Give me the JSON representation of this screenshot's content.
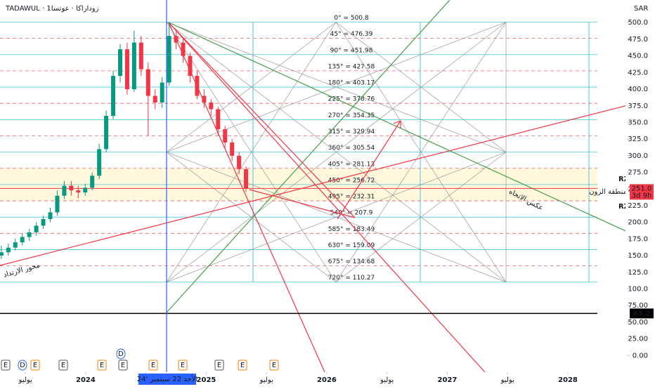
{
  "header": {
    "symbol": "TADAWUL · زوداراكا · عوتسا1",
    "currency": "SAR"
  },
  "chart_data": {
    "type": "candlestick",
    "x": [
      2023.3,
      2023.358,
      2023.416,
      2023.474,
      2023.532,
      2023.59,
      2023.648,
      2023.706,
      2023.764,
      2023.822,
      2023.88,
      2023.938,
      2023.996,
      2024.054,
      2024.112,
      2024.17,
      2024.228,
      2024.286,
      2024.344,
      2024.402,
      2024.46,
      2024.518,
      2024.576,
      2024.634,
      2024.692,
      2024.75,
      2024.808,
      2024.866,
      2024.924,
      2024.982,
      2025.04,
      2025.098,
      2025.156,
      2025.214,
      2025.272,
      2025.33
    ],
    "open": [
      150,
      155,
      162,
      170,
      178,
      185,
      195,
      205,
      215,
      240,
      255,
      248,
      245,
      252,
      270,
      310,
      360,
      420,
      460,
      400,
      470,
      430,
      390,
      380,
      410,
      480,
      470,
      450,
      420,
      390,
      380,
      370,
      340,
      320,
      300,
      280
    ],
    "high": [
      165,
      168,
      176,
      184,
      190,
      200,
      210,
      222,
      248,
      262,
      262,
      255,
      258,
      275,
      318,
      368,
      428,
      468,
      470,
      488,
      480,
      440,
      400,
      418,
      500,
      490,
      476,
      455,
      428,
      400,
      385,
      374,
      345,
      325,
      306,
      284
    ],
    "low": [
      145,
      150,
      158,
      165,
      172,
      180,
      190,
      200,
      210,
      235,
      240,
      236,
      240,
      248,
      265,
      305,
      355,
      410,
      392,
      396,
      420,
      330,
      370,
      372,
      405,
      460,
      440,
      410,
      385,
      372,
      360,
      330,
      312,
      292,
      272,
      246
    ],
    "close": [
      155,
      162,
      170,
      178,
      185,
      195,
      205,
      215,
      240,
      255,
      248,
      245,
      252,
      270,
      310,
      360,
      420,
      460,
      400,
      470,
      430,
      390,
      380,
      410,
      480,
      470,
      450,
      420,
      390,
      380,
      370,
      340,
      320,
      300,
      280,
      251
    ],
    "up_color": "#089981",
    "down_color": "#f23645",
    "xlim": [
      2023.289,
      2028.723
    ],
    "xticks": [
      {
        "value": 2023.5,
        "label": "يوليو"
      },
      2024,
      {
        "value": 2024.5,
        "label": "يوليو"
      },
      2025,
      {
        "value": 2025.5,
        "label": "يوليو"
      },
      2026,
      {
        "value": 2026.5,
        "label": "يوليو"
      },
      2027,
      {
        "value": 2027.5,
        "label": "يوليو"
      },
      2028
    ],
    "ylim": [
      -25,
      534
    ],
    "yticks": [
      {
        "value": 500,
        "label": "500.0"
      },
      {
        "value": 475,
        "label": "475.0"
      },
      {
        "value": 450,
        "label": "450.0"
      },
      {
        "value": 425,
        "label": "425.0"
      },
      {
        "value": 400,
        "label": "400.0"
      },
      {
        "value": 375,
        "label": "375.0"
      },
      {
        "value": 350,
        "label": "350.0"
      },
      {
        "value": 325,
        "label": "325.0"
      },
      {
        "value": 300,
        "label": "300.0"
      },
      {
        "value": 275,
        "label": "275.0"
      },
      {
        "value": 250,
        "label": "250.0"
      },
      {
        "value": 225,
        "label": "225.0"
      },
      {
        "value": 200,
        "label": "200.0"
      },
      {
        "value": 175,
        "label": "175.0"
      },
      {
        "value": 150,
        "label": "150.0"
      },
      {
        "value": 125,
        "label": "125.0"
      },
      {
        "value": 100,
        "label": "100.0"
      },
      {
        "value": 75,
        "label": "75.00"
      },
      {
        "value": 50,
        "label": "50.00"
      },
      {
        "value": 25,
        "label": "25.00"
      },
      {
        "value": 0,
        "label": "0.00"
      }
    ],
    "gann_levels": {
      "values": [
        500.8,
        476.39,
        451.98,
        427.58,
        403.17,
        378.76,
        354.35,
        329.94,
        305.54,
        281.13,
        256.72,
        232.31,
        207.9,
        183.49,
        159.09,
        134.68,
        110.27
      ],
      "labels": [
        "0° = 500.8",
        "45° = 476.39",
        "90° = 451.98",
        "135° = 427.58",
        "180° = 403.17",
        "225° = 378.76",
        "270° = 354.35",
        "315° = 329.94",
        "360° = 305.54",
        "405° = 281.13",
        "450° = 256.72",
        "495° = 232.31",
        "540° = 207.9",
        "585° = 183.49",
        "630° = 159.09",
        "675° = 134.68",
        "720° = 110.27"
      ],
      "colors": [
        "#22b8cf",
        "#f23645"
      ]
    },
    "last_price": {
      "value": 251.0,
      "label": "251.0",
      "countdown": "3d 9h",
      "color": "#f23645"
    },
    "marker_line": {
      "value": 63.2,
      "label": "63.2"
    },
    "zone": {
      "top": 281.13,
      "bottom": 232.31,
      "top_label": "RZH",
      "bottom_label": "RZL",
      "name": "منطقة الزون"
    },
    "annotations": {
      "reversal": "عكس الاتجاه",
      "pivot": "محور الارتداد"
    },
    "crosshair_label": "الأحد 22 سبتمبر '24",
    "events": [
      "E",
      "D",
      "E",
      "E",
      "D",
      "E",
      "E",
      "E",
      "E",
      "E",
      "E",
      "E"
    ]
  }
}
